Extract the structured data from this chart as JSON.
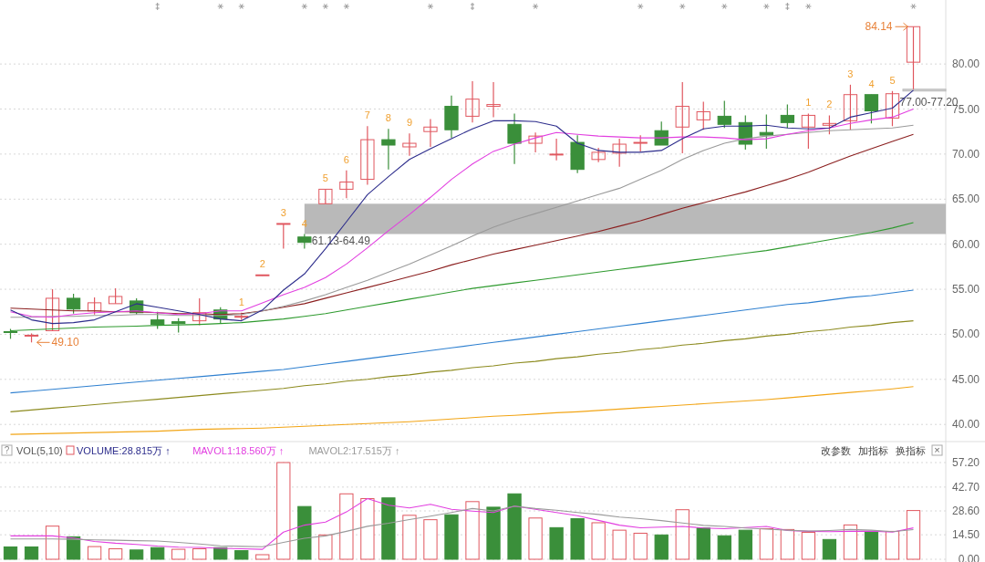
{
  "chart_data": [
    {
      "type": "candlestick",
      "categories": [
        null,
        null,
        null,
        null,
        null,
        null,
        null,
        null,
        null,
        null,
        null,
        null,
        null,
        null,
        null,
        null,
        null,
        null,
        null,
        null,
        null,
        null,
        null,
        null,
        null,
        null,
        null,
        null,
        null,
        null,
        null,
        null,
        null,
        null,
        null,
        null,
        null,
        null,
        null,
        null,
        null,
        null,
        null,
        null
      ],
      "ohlc": [
        [
          50.3,
          50.6,
          49.5,
          50.2
        ],
        [
          49.8,
          50.1,
          49.1,
          49.9
        ],
        [
          50.4,
          55.0,
          50.4,
          54.0
        ],
        [
          54.0,
          54.5,
          52.3,
          52.8
        ],
        [
          52.6,
          54.1,
          52.2,
          53.5
        ],
        [
          53.4,
          55.1,
          53.4,
          54.2
        ],
        [
          53.7,
          54.0,
          52.2,
          52.4
        ],
        [
          51.6,
          52.5,
          50.6,
          51.1
        ],
        [
          51.4,
          51.8,
          50.2,
          51.2
        ],
        [
          51.5,
          54.0,
          51.0,
          52.4
        ],
        [
          52.7,
          53.0,
          51.2,
          51.7
        ],
        [
          51.9,
          52.4,
          51.6,
          52.0
        ],
        [
          56.5,
          56.6,
          56.5,
          56.6
        ],
        [
          62.3,
          62.3,
          59.5,
          62.3
        ],
        [
          60.8,
          61.13,
          59.5,
          60.2
        ],
        [
          64.49,
          66.1,
          64.49,
          66.1
        ],
        [
          66.1,
          68.2,
          65.1,
          66.9
        ],
        [
          67.2,
          73.1,
          66.6,
          71.6
        ],
        [
          71.6,
          72.8,
          68.3,
          71.0
        ],
        [
          70.8,
          72.3,
          69.8,
          71.2
        ],
        [
          72.5,
          73.9,
          70.8,
          73.0
        ],
        [
          75.3,
          76.5,
          71.8,
          72.7
        ],
        [
          74.2,
          78.1,
          73.5,
          76.1
        ],
        [
          75.3,
          78.0,
          74.1,
          75.5
        ],
        [
          73.3,
          74.5,
          68.9,
          71.2
        ],
        [
          71.2,
          72.4,
          70.2,
          72.0
        ],
        [
          69.9,
          71.7,
          69.3,
          70.0
        ],
        [
          71.3,
          72.1,
          67.9,
          68.3
        ],
        [
          69.4,
          70.7,
          69.1,
          70.2
        ],
        [
          70.1,
          71.7,
          68.6,
          71.1
        ],
        [
          71.2,
          72.1,
          70.3,
          71.3
        ],
        [
          72.6,
          73.6,
          71.0,
          71.0
        ],
        [
          73.0,
          78.0,
          70.1,
          75.3
        ],
        [
          73.8,
          75.8,
          72.7,
          74.7
        ],
        [
          74.2,
          75.9,
          72.9,
          73.3
        ],
        [
          73.5,
          74.3,
          70.5,
          71.1
        ],
        [
          72.4,
          74.4,
          70.6,
          72.1
        ],
        [
          74.3,
          75.5,
          72.9,
          73.5
        ],
        [
          73.0,
          74.5,
          70.6,
          74.3
        ],
        [
          73.2,
          74.3,
          72.2,
          73.4
        ],
        [
          73.7,
          77.7,
          72.7,
          76.6
        ],
        [
          76.6,
          76.6,
          73.4,
          74.8
        ],
        [
          74.0,
          77.0,
          73.1,
          76.7
        ],
        [
          80.2,
          84.14,
          77.2,
          84.14
        ]
      ],
      "colors": [
        "#3a8f3a",
        "#e0575f",
        "#e0575f",
        "#3a8f3a",
        "#e0575f",
        "#e0575f",
        "#3a8f3a",
        "#3a8f3a",
        "#3a8f3a",
        "#e0575f",
        "#3a8f3a",
        "#e0575f",
        "#e0575f",
        "#e0575f",
        "#3a8f3a",
        "#e0575f",
        "#e0575f",
        "#e0575f",
        "#3a8f3a",
        "#e0575f",
        "#e0575f",
        "#3a8f3a",
        "#e0575f",
        "#e0575f",
        "#3a8f3a",
        "#e0575f",
        "#e0575f",
        "#3a8f3a",
        "#e0575f",
        "#e0575f",
        "#e0575f",
        "#3a8f3a",
        "#e0575f",
        "#e0575f",
        "#3a8f3a",
        "#3a8f3a",
        "#3a8f3a",
        "#3a8f3a",
        "#e0575f",
        "#e0575f",
        "#e0575f",
        "#3a8f3a",
        "#e0575f",
        "#e0575f"
      ],
      "series": [
        {
          "type": "line",
          "color": "#f2a516",
          "values": [
            38.9,
            38.95,
            39.0,
            39.05,
            39.1,
            39.15,
            39.2,
            39.25,
            39.35,
            39.45,
            39.5,
            39.55,
            39.6,
            39.7,
            39.8,
            39.9,
            40.0,
            40.1,
            40.2,
            40.3,
            40.45,
            40.6,
            40.75,
            40.9,
            41.0,
            41.15,
            41.3,
            41.4,
            41.55,
            41.7,
            41.85,
            42.0,
            42.15,
            42.3,
            42.45,
            42.6,
            42.75,
            42.95,
            43.15,
            43.35,
            43.55,
            43.75,
            43.95,
            44.2
          ]
        },
        {
          "type": "line",
          "color": "#8c8a1e",
          "values": [
            41.4,
            41.6,
            41.8,
            42.0,
            42.2,
            42.4,
            42.6,
            42.8,
            43.0,
            43.2,
            43.4,
            43.6,
            43.8,
            44.0,
            44.3,
            44.5,
            44.8,
            45.0,
            45.3,
            45.5,
            45.8,
            46.0,
            46.3,
            46.5,
            46.8,
            47.0,
            47.3,
            47.5,
            47.8,
            48.0,
            48.3,
            48.5,
            48.8,
            49.0,
            49.3,
            49.5,
            49.8,
            50.0,
            50.3,
            50.5,
            50.8,
            51.0,
            51.3,
            51.5
          ]
        },
        {
          "type": "line",
          "color": "#2f80d0",
          "values": [
            43.5,
            43.7,
            43.9,
            44.1,
            44.3,
            44.5,
            44.7,
            44.9,
            45.1,
            45.3,
            45.5,
            45.7,
            45.9,
            46.1,
            46.4,
            46.7,
            47.0,
            47.3,
            47.6,
            47.9,
            48.2,
            48.5,
            48.8,
            49.1,
            49.4,
            49.7,
            50.0,
            50.3,
            50.6,
            50.9,
            51.2,
            51.5,
            51.8,
            52.1,
            52.4,
            52.7,
            53.0,
            53.3,
            53.5,
            53.8,
            54.1,
            54.3,
            54.6,
            54.9
          ]
        },
        {
          "type": "line",
          "color": "#2e9a2e",
          "values": [
            50.4,
            50.5,
            50.6,
            50.7,
            50.8,
            50.85,
            50.9,
            51.0,
            51.05,
            51.1,
            51.2,
            51.3,
            51.5,
            51.7,
            52.0,
            52.3,
            52.7,
            53.1,
            53.5,
            53.9,
            54.3,
            54.7,
            55.1,
            55.4,
            55.7,
            56.0,
            56.3,
            56.6,
            56.9,
            57.2,
            57.5,
            57.8,
            58.1,
            58.4,
            58.7,
            59.0,
            59.3,
            59.7,
            60.1,
            60.5,
            60.9,
            61.3,
            61.8,
            62.4
          ]
        },
        {
          "type": "line",
          "color": "#8b1f1f",
          "values": [
            52.9,
            52.8,
            52.7,
            52.6,
            52.6,
            52.5,
            52.5,
            52.4,
            52.3,
            52.3,
            52.2,
            52.3,
            52.6,
            53.0,
            53.4,
            54.0,
            54.6,
            55.2,
            55.8,
            56.4,
            57.0,
            57.7,
            58.3,
            58.9,
            59.4,
            59.9,
            60.4,
            60.9,
            61.4,
            62.0,
            62.6,
            63.3,
            64.0,
            64.6,
            65.2,
            65.8,
            66.5,
            67.2,
            68.0,
            68.9,
            69.8,
            70.6,
            71.4,
            72.2
          ]
        },
        {
          "type": "line",
          "color": "#9a9a9a",
          "values": [
            51.9,
            51.9,
            52.0,
            52.0,
            52.1,
            52.1,
            52.2,
            52.2,
            52.1,
            52.1,
            52.1,
            52.2,
            52.6,
            53.1,
            53.7,
            54.4,
            55.2,
            56.0,
            56.9,
            57.8,
            58.8,
            59.8,
            60.9,
            61.9,
            62.7,
            63.4,
            64.1,
            64.8,
            65.5,
            66.2,
            67.2,
            68.2,
            69.4,
            70.4,
            71.2,
            71.7,
            72.0,
            72.2,
            72.4,
            72.6,
            72.7,
            72.8,
            72.9,
            73.2
          ]
        },
        {
          "type": "line",
          "color": "#e23fe0",
          "values": [
            52.5,
            52.0,
            51.9,
            52.2,
            52.4,
            52.5,
            52.6,
            52.4,
            52.2,
            52.3,
            52.6,
            52.6,
            53.5,
            54.4,
            55.2,
            56.3,
            57.8,
            59.6,
            61.5,
            63.3,
            65.2,
            67.2,
            68.9,
            70.3,
            71.1,
            71.8,
            72.4,
            72.2,
            72.0,
            71.9,
            71.8,
            71.8,
            71.9,
            71.9,
            71.8,
            71.6,
            71.7,
            72.2,
            72.6,
            72.9,
            73.4,
            73.8,
            74.1,
            75.0
          ]
        },
        {
          "type": "line",
          "color": "#2d2d8c",
          "values": [
            52.7,
            51.6,
            51.2,
            51.3,
            51.6,
            52.5,
            53.4,
            53.0,
            52.6,
            52.2,
            51.7,
            51.5,
            52.7,
            54.9,
            56.7,
            59.5,
            62.5,
            65.5,
            67.5,
            69.4,
            70.6,
            71.7,
            72.8,
            73.7,
            73.7,
            73.6,
            73.1,
            71.2,
            70.4,
            70.2,
            70.2,
            70.4,
            71.7,
            72.8,
            73.1,
            73.1,
            73.2,
            72.9,
            72.8,
            72.9,
            74.1,
            74.6,
            75.1,
            77.1
          ]
        }
      ],
      "value_labels": [
        null,
        null,
        null,
        null,
        null,
        null,
        null,
        null,
        null,
        null,
        null,
        "1",
        "2",
        "3",
        "4",
        "5",
        "6",
        "7",
        "8",
        "9",
        null,
        null,
        null,
        null,
        null,
        null,
        null,
        null,
        null,
        null,
        null,
        null,
        null,
        null,
        null,
        null,
        null,
        null,
        "1",
        "2",
        "3",
        "4",
        "5",
        null
      ],
      "ylim": [
        38.3,
        87.1
      ],
      "yticks": [
        {
          "value": 40,
          "label": "40.00"
        },
        {
          "value": 45,
          "label": "45.00"
        },
        {
          "value": 50,
          "label": "50.00"
        },
        {
          "value": 55,
          "label": "55.00"
        },
        {
          "value": 60,
          "label": "60.00"
        },
        {
          "value": 65,
          "label": "65.00"
        },
        {
          "value": 70,
          "label": "70.00"
        },
        {
          "value": 75,
          "label": "75.00"
        },
        {
          "value": 80,
          "label": "80.00"
        }
      ],
      "tick_labels": "y",
      "grid": "y",
      "bands": [
        {
          "axis": "y",
          "from": 61.13,
          "to": 64.49,
          "label": "61.13-64.49",
          "color": "#b9b9b9"
        },
        {
          "axis": "y",
          "from": 77.0,
          "to": 77.2,
          "label": "77.00-77.20",
          "color": "#cfcfcf"
        }
      ],
      "annotations": [
        "84.14",
        "49.10"
      ]
    },
    {
      "type": "bar",
      "categories": [
        null,
        null,
        null,
        null,
        null,
        null,
        null,
        null,
        null,
        null,
        null,
        null,
        null,
        null,
        null,
        null,
        null,
        null,
        null,
        null,
        null,
        null,
        null,
        null,
        null,
        null,
        null,
        null,
        null,
        null,
        null,
        null,
        null,
        null,
        null,
        null,
        null,
        null,
        null,
        null,
        null,
        null,
        null,
        null
      ],
      "title": "VOL(5,10)",
      "series": [
        {
          "name": "VOLUME:28.815万 ↑",
          "color": "#2d2d8c",
          "colors": [
            "#3a8f3a",
            "#3a8f3a",
            "#e0575f",
            "#3a8f3a",
            "#e0575f",
            "#e0575f",
            "#3a8f3a",
            "#3a8f3a",
            "#e0575f",
            "#e0575f",
            "#3a8f3a",
            "#3a8f3a",
            "#e0575f",
            "#e0575f",
            "#3a8f3a",
            "#e0575f",
            "#e0575f",
            "#e0575f",
            "#3a8f3a",
            "#e0575f",
            "#e0575f",
            "#3a8f3a",
            "#e0575f",
            "#3a8f3a",
            "#3a8f3a",
            "#e0575f",
            "#3a8f3a",
            "#3a8f3a",
            "#e0575f",
            "#e0575f",
            "#e0575f",
            "#3a8f3a",
            "#e0575f",
            "#3a8f3a",
            "#3a8f3a",
            "#3a8f3a",
            "#e0575f",
            "#e0575f",
            "#e0575f",
            "#3a8f3a",
            "#e0575f",
            "#3a8f3a",
            "#e0575f",
            "#e0575f"
          ],
          "values": [
            7.3,
            7.3,
            19.6,
            13.3,
            7.5,
            6.2,
            5.5,
            6.9,
            5.9,
            6.2,
            6.9,
            5.1,
            2.7,
            57.2,
            31.2,
            14.4,
            38.7,
            35.9,
            36.3,
            26.0,
            23.4,
            26.3,
            34.1,
            30.8,
            38.7,
            24.4,
            18.7,
            24.0,
            21.6,
            17.2,
            15.4,
            14.4,
            29.3,
            18.5,
            13.9,
            17.2,
            18.1,
            17.6,
            15.9,
            11.7,
            20.3,
            15.9,
            16.5,
            28.815
          ]
        },
        {
          "type": "line",
          "name": "MAVOL1:18.560万 ↑",
          "color": "#e23fe0",
          "values": [
            13.8,
            13.8,
            13.8,
            12.5,
            10.5,
            9.5,
            8.8,
            7.8,
            7.2,
            7.0,
            6.5,
            6.2,
            5.9,
            16.0,
            20.2,
            22.0,
            28.0,
            35.9,
            32.0,
            30.3,
            32.5,
            29.5,
            28.5,
            27.7,
            31.4,
            29.5,
            27.7,
            25.8,
            23.0,
            20.2,
            18.6,
            19.0,
            19.4,
            18.5,
            18.1,
            18.8,
            19.4,
            17.0,
            16.5,
            16.3,
            16.5,
            16.7,
            16.1,
            18.56
          ]
        },
        {
          "type": "line",
          "name": "MAVOL2:17.515万 ↑",
          "color": "#9a9a9a",
          "values": [
            12.0,
            12.0,
            12.0,
            11.8,
            11.5,
            11.3,
            11.0,
            10.8,
            10.0,
            9.0,
            8.0,
            7.6,
            7.4,
            10.0,
            12.4,
            13.8,
            16.5,
            19.5,
            21.3,
            23.5,
            25.5,
            27.7,
            30.0,
            28.6,
            31.4,
            30.0,
            29.0,
            27.7,
            26.5,
            25.0,
            24.0,
            22.9,
            21.5,
            20.0,
            19.4,
            18.5,
            17.8,
            17.2,
            16.7,
            17.0,
            17.6,
            17.2,
            16.3,
            17.515
          ]
        }
      ],
      "ylim": [
        0,
        57.2
      ],
      "yticks": [
        {
          "value": 0,
          "label": "0.00"
        },
        {
          "value": 14.5,
          "label": "14.50"
        },
        {
          "value": 28.6,
          "label": "28.60"
        },
        {
          "value": 42.7,
          "label": "42.70"
        },
        {
          "value": 57.2,
          "label": "57.20"
        }
      ],
      "tick_labels": "y",
      "grid": "y",
      "legend": "top left",
      "annotations": [
        "?",
        "改参数",
        "加指标",
        "换指标",
        "×"
      ]
    }
  ]
}
